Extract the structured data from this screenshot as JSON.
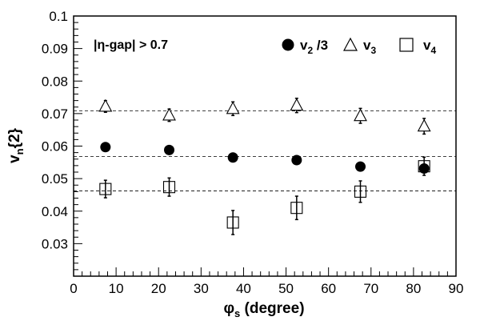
{
  "chart_data": {
    "type": "scatter",
    "xlabel": "φs (degree)",
    "xlabel_main": "φ",
    "xlabel_sub": "s",
    "xlabel_rest": " (degree)",
    "ylabel": "vn{2}",
    "ylabel_main": "v",
    "ylabel_sub": "n",
    "ylabel_rest": "{2}",
    "xlim": [
      0,
      90
    ],
    "ylim": [
      0.02,
      0.1
    ],
    "xticks": [
      "0",
      "10",
      "20",
      "30",
      "40",
      "50",
      "60",
      "70",
      "80",
      "90"
    ],
    "xtick_values": [
      0,
      10,
      20,
      30,
      40,
      50,
      60,
      70,
      80,
      90
    ],
    "yticks": [
      "0.03",
      "0.04",
      "0.05",
      "0.06",
      "0.07",
      "0.08",
      "0.09",
      "0.1"
    ],
    "ytick_values": [
      0.03,
      0.04,
      0.05,
      0.06,
      0.07,
      0.08,
      0.09,
      0.1
    ],
    "annotation": "|η-gap| > 0.7",
    "legend_placement": "top-right",
    "reference_lines": [
      0.0708,
      0.0568,
      0.0462
    ],
    "series": [
      {
        "name": "v2/3",
        "legend_main": "v",
        "legend_sub": "2",
        "legend_rest": " /3",
        "marker": "filled-circle",
        "x": [
          7.5,
          22.5,
          37.5,
          52.5,
          67.5,
          82.5
        ],
        "y": [
          0.0597,
          0.0588,
          0.0565,
          0.0557,
          0.0537,
          0.0531
        ],
        "err": [
          0.0,
          0.0,
          0.0,
          0.0,
          0.0,
          0.0008
        ]
      },
      {
        "name": "v3",
        "legend_main": "v",
        "legend_sub": "3",
        "legend_rest": "",
        "marker": "open-triangle",
        "x": [
          7.5,
          22.5,
          37.5,
          52.5,
          67.5,
          82.5
        ],
        "y": [
          0.0722,
          0.0695,
          0.0715,
          0.0725,
          0.0693,
          0.0661
        ],
        "err": [
          0.0018,
          0.0019,
          0.0021,
          0.0022,
          0.0023,
          0.0024
        ]
      },
      {
        "name": "v4",
        "legend_main": "v",
        "legend_sub": "4",
        "legend_rest": "",
        "marker": "open-square",
        "x": [
          7.5,
          22.5,
          37.5,
          52.5,
          67.5,
          82.5
        ],
        "y": [
          0.0468,
          0.0474,
          0.0365,
          0.041,
          0.046,
          0.0538
        ],
        "err": [
          0.0027,
          0.0028,
          0.0037,
          0.0036,
          0.0033,
          0.0028
        ]
      }
    ]
  }
}
